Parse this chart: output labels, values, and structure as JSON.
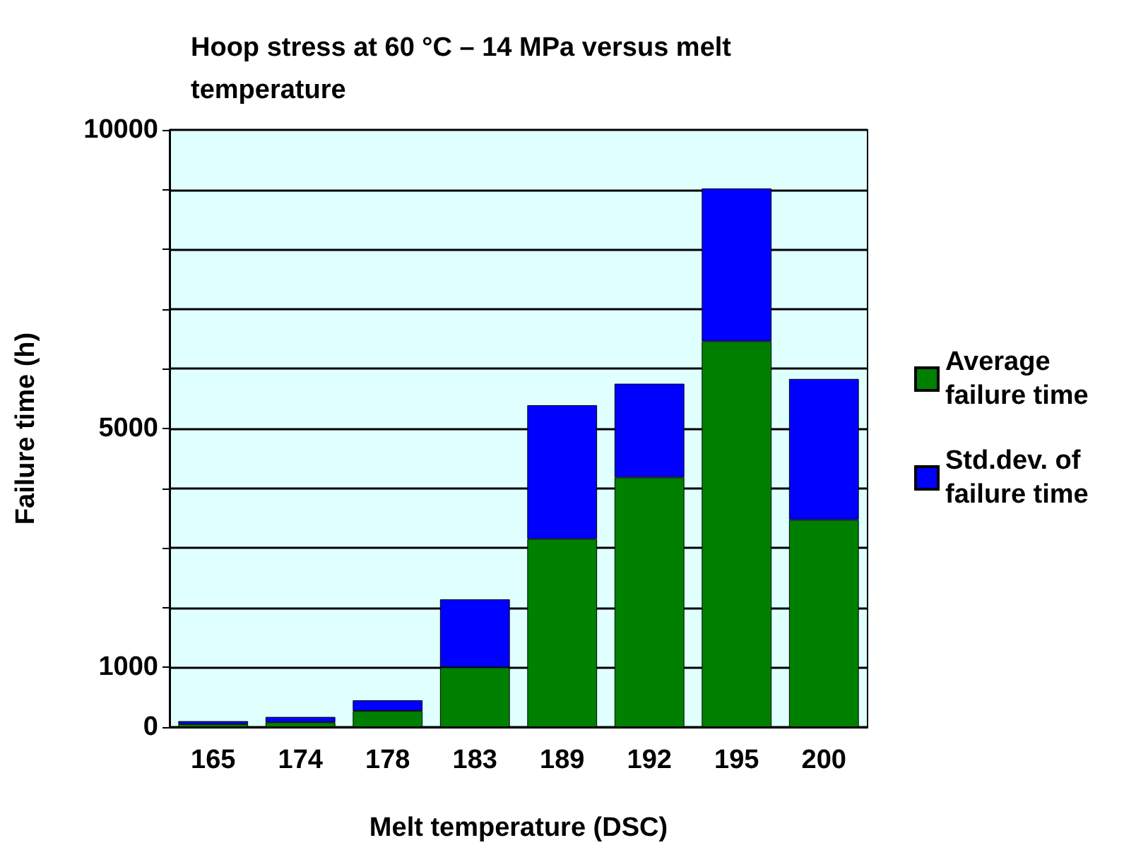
{
  "chart_data": {
    "type": "bar",
    "title": "Hoop stress at 60 °C – 14 MPa versus melt temperature",
    "xlabel": "Melt temperature (DSC)",
    "ylabel": "Failure time (h)",
    "categories": [
      "165",
      "174",
      "178",
      "183",
      "189",
      "192",
      "195",
      "200"
    ],
    "stacked": true,
    "series": [
      {
        "name": "Average failure time",
        "color": "#008000",
        "values": [
          50,
          80,
          270,
          1000,
          3150,
          4180,
          6460,
          3470
        ]
      },
      {
        "name": "Std.dev. of failure time",
        "color": "#0000ff",
        "values": [
          50,
          90,
          180,
          1140,
          2240,
          1570,
          2560,
          2360
        ]
      }
    ],
    "ylim": [
      0,
      10000
    ],
    "yticks": [
      0,
      1000,
      {
        "value": 2000,
        "label": null
      },
      {
        "value": 3000,
        "label": null
      },
      {
        "value": 4000,
        "label": null
      },
      5000,
      {
        "value": 6000,
        "label": null
      },
      {
        "value": 7000,
        "label": null
      },
      {
        "value": 8000,
        "label": null
      },
      {
        "value": 9000,
        "label": null
      },
      10000
    ],
    "grid": "y",
    "legend": "right"
  }
}
